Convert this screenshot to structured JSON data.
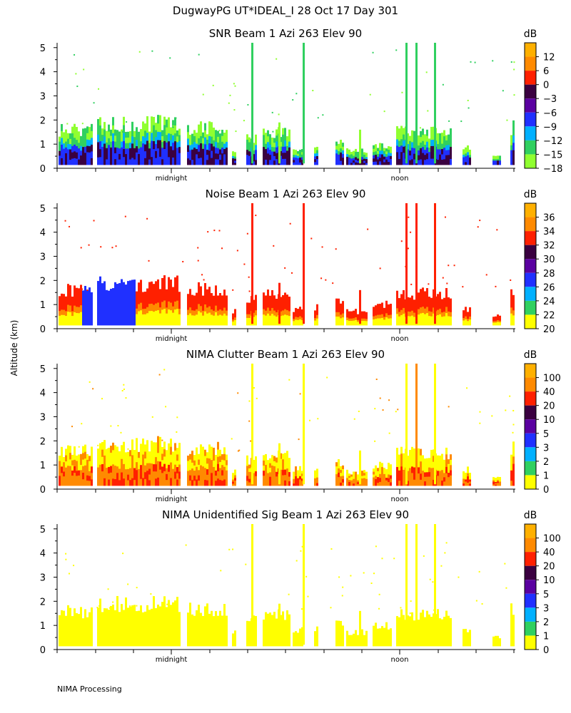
{
  "page_title": "DugwayPG UT*IDEAL_I  28 Oct 17 Day 301",
  "ylabel": "Altitude (km)",
  "footer": "NIMA Processing",
  "chart_data": [
    {
      "type": "heatmap",
      "title": "SNR Beam 1 Azi 263 Elev 90",
      "unit": "dB",
      "ylim": [
        0,
        5.2
      ],
      "yticks": [
        "0",
        "1",
        "2",
        "3",
        "4",
        "5"
      ],
      "xtick_labels": [
        "midnight",
        "noon"
      ],
      "colorbar": {
        "labels": [
          "",
          "12",
          "6",
          "0",
          "−3",
          "−6",
          "−9",
          "−12",
          "−15",
          "−18"
        ],
        "colors": [
          "#ffb000",
          "#ff8a00",
          "#ff2000",
          "#3a0040",
          "#5a00a0",
          "#2030ff",
          "#00b0ff",
          "#30d060",
          "#90ff30"
        ]
      }
    },
    {
      "type": "heatmap",
      "title": "Noise Beam 1 Azi 263 Elev 90",
      "unit": "dB",
      "ylim": [
        0,
        5.2
      ],
      "yticks": [
        "0",
        "1",
        "2",
        "3",
        "4",
        "5"
      ],
      "xtick_labels": [
        "midnight",
        "noon"
      ],
      "colorbar": {
        "labels": [
          "",
          "36",
          "34",
          "32",
          "30",
          "28",
          "26",
          "24",
          "22",
          "20"
        ],
        "colors": [
          "#ffb000",
          "#ff8a00",
          "#ff2000",
          "#3a0040",
          "#5a00a0",
          "#2030ff",
          "#00b0ff",
          "#30d060",
          "#ffff00"
        ]
      }
    },
    {
      "type": "heatmap",
      "title": "NIMA Clutter Beam 1 Azi 263 Elev 90",
      "unit": "dB",
      "ylim": [
        0,
        5.2
      ],
      "yticks": [
        "0",
        "1",
        "2",
        "3",
        "4",
        "5"
      ],
      "xtick_labels": [
        "midnight",
        "noon"
      ],
      "colorbar": {
        "labels": [
          "",
          "100",
          "40",
          "20",
          "10",
          "5",
          "3",
          "2",
          "1",
          "0"
        ],
        "colors": [
          "#ffb000",
          "#ff8a00",
          "#ff2000",
          "#3a0040",
          "#5a00a0",
          "#2030ff",
          "#00b0ff",
          "#30d060",
          "#ffff00"
        ]
      }
    },
    {
      "type": "heatmap",
      "title": "NIMA Unidentified Sig Beam 1 Azi 263 Elev 90",
      "unit": "dB",
      "ylim": [
        0,
        5.2
      ],
      "yticks": [
        "0",
        "1",
        "2",
        "3",
        "4",
        "5"
      ],
      "xtick_labels": [
        "midnight",
        "noon"
      ],
      "colorbar": {
        "labels": [
          "",
          "100",
          "40",
          "20",
          "10",
          "5",
          "3",
          "2",
          "1",
          "0"
        ],
        "colors": [
          "#ffb000",
          "#ff8a00",
          "#ff2000",
          "#3a0040",
          "#5a00a0",
          "#2030ff",
          "#00b0ff",
          "#30d060",
          "#ffff00"
        ]
      }
    }
  ]
}
